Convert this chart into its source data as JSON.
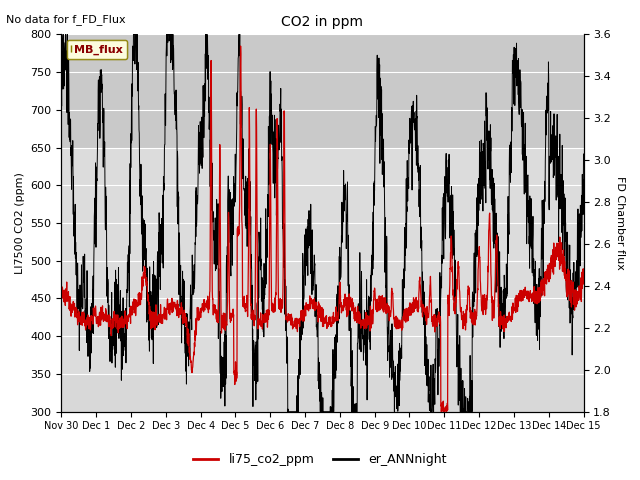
{
  "title": "CO2 in ppm",
  "ylabel_left": "LI7500 CO2 (ppm)",
  "ylabel_right": "FD Chamber flux",
  "ylim_left": [
    300,
    800
  ],
  "ylim_right": [
    1.8,
    3.6
  ],
  "yticks_left": [
    300,
    350,
    400,
    450,
    500,
    550,
    600,
    650,
    700,
    750,
    800
  ],
  "yticks_right": [
    1.8,
    2.0,
    2.2,
    2.4,
    2.6,
    2.8,
    3.0,
    3.2,
    3.4,
    3.6
  ],
  "xticklabels": [
    "Nov 30",
    "Dec 1",
    "Dec 2",
    "Dec 3",
    "Dec 4",
    "Dec 5",
    "Dec 6",
    "Dec 7",
    "Dec 8",
    "Dec 9",
    "Dec 10",
    "Dec 11",
    "Dec 12",
    "Dec 13",
    "Dec 14",
    "Dec 15"
  ],
  "plot_bg_color": "#d8d8d8",
  "upper_band_color": "#c8c8c8",
  "no_data_text": "No data for f_FD_Flux",
  "mb_flux_label": "MB_flux",
  "legend_entries": [
    "li75_co2_ppm",
    "er_ANNnight"
  ],
  "red_color": "#cc0000",
  "black_color": "#000000",
  "figsize": [
    6.4,
    4.8
  ],
  "dpi": 100
}
